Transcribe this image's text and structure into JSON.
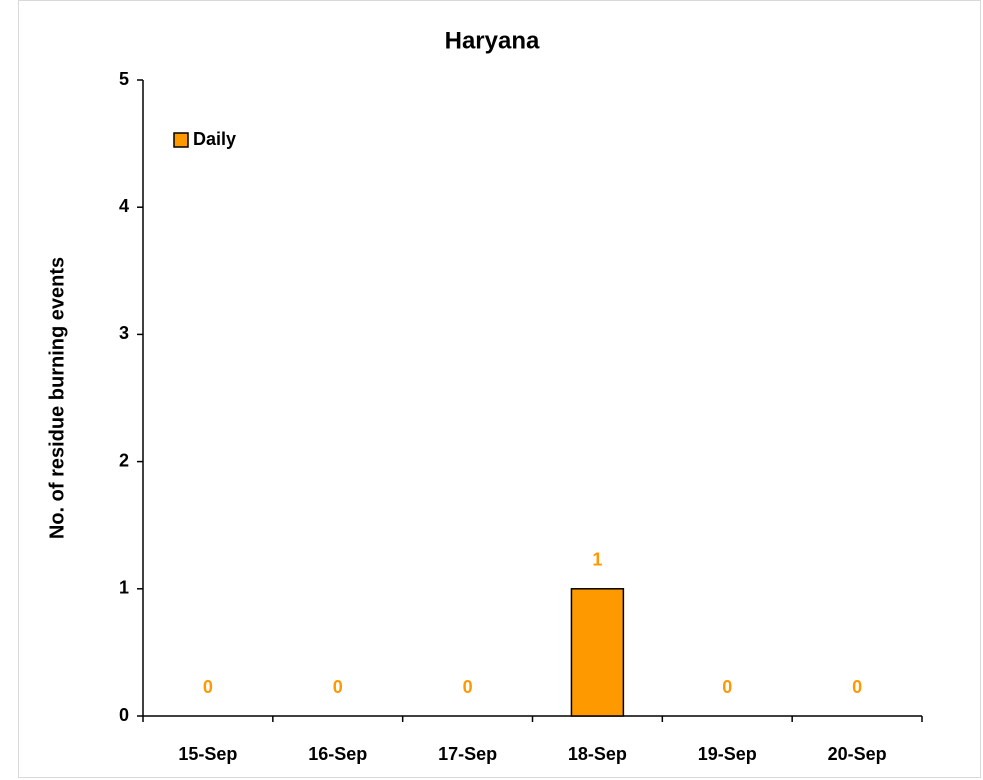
{
  "chart_data": {
    "type": "bar",
    "title": "Haryana",
    "y_label": "No. of residue burning events",
    "categories": [
      "15-Sep",
      "16-Sep",
      "17-Sep",
      "18-Sep",
      "19-Sep",
      "20-Sep"
    ],
    "series": [
      {
        "name": "Daily",
        "color": "#ff9900",
        "values": [
          0,
          0,
          0,
          1,
          0,
          0
        ]
      }
    ],
    "ylim": [
      0,
      5
    ],
    "yticks": [
      0,
      1,
      2,
      3,
      4,
      5
    ],
    "grid": false,
    "legend": "upper left"
  }
}
